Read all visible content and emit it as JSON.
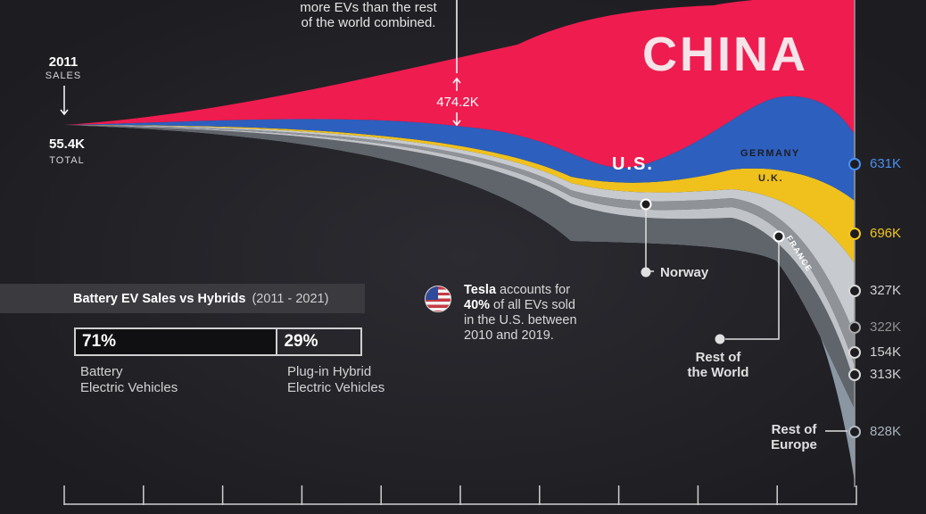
{
  "intro": {
    "line1": "more EVs than the rest",
    "line2": "of the world combined."
  },
  "start": {
    "year": "2011",
    "sales_label": "SALES",
    "total_value": "55.4K",
    "total_label": "TOTAL"
  },
  "gap_label": "474.2K",
  "chart_data": {
    "type": "area",
    "style": "streamgraph",
    "x": [
      2011,
      2012,
      2013,
      2014,
      2015,
      2016,
      2017,
      2018,
      2019,
      2020,
      2021
    ],
    "start_total": 55.4,
    "series": [
      {
        "name": "CHINA",
        "color": "#ef1c4f",
        "end_label": ""
      },
      {
        "name": "U.S.",
        "color": "#2d5fbe",
        "end_label": "631K"
      },
      {
        "name": "GERMANY",
        "color": "#f0c11c",
        "end_label": "696K"
      },
      {
        "name": "U.K.",
        "color": "#c7cace",
        "end_label": "327K"
      },
      {
        "name": "Norway",
        "color": "#8f9297",
        "end_label": "322K"
      },
      {
        "name": "FRANCE",
        "color": "#c0c3c8",
        "end_label": "154K"
      },
      {
        "name": "Rest of the World",
        "color": "#60656b",
        "end_label": "313K"
      },
      {
        "name": "Rest of Europe",
        "color": "#8a97a3",
        "end_label": "828K"
      }
    ],
    "annotations": [
      {
        "text": "474.2K",
        "target": "CHINA"
      }
    ]
  },
  "labels": {
    "china": "CHINA",
    "us": "U.S.",
    "germany": "GERMANY",
    "uk": "U.K.",
    "france": "FRANCE",
    "norway": "Norway",
    "rest_world_line1": "Rest of",
    "rest_world_line2": "the World",
    "rest_europe_line1": "Rest of",
    "rest_europe_line2": "Europe"
  },
  "colors": {
    "background": "#1d1d21",
    "china": "#ef1c4f",
    "us": "#2d5fbe",
    "germany": "#f0c11c",
    "us_value_text": "#4a8ff0",
    "germany_value_text": "#f3c61f"
  },
  "panel": {
    "title": "Battery EV Sales vs Hybrids",
    "period": "(2011 - 2021)",
    "bev_share": 71,
    "phev_share": 29,
    "bev_pct": "71%",
    "phev_pct": "29%",
    "bev_label_line1": "Battery",
    "bev_label_line2": "Electric Vehicles",
    "phev_label_line1": "Plug-in Hybrid",
    "phev_label_line2": "Electric Vehicles"
  },
  "tesla": {
    "brand": "Tesla",
    "text1": " accounts for",
    "pct": "40%",
    "text2": " of all EVs sold",
    "line3": "in the U.S. between",
    "line4": "2010 and 2019.",
    "flag_icon": "us-flag-icon"
  }
}
